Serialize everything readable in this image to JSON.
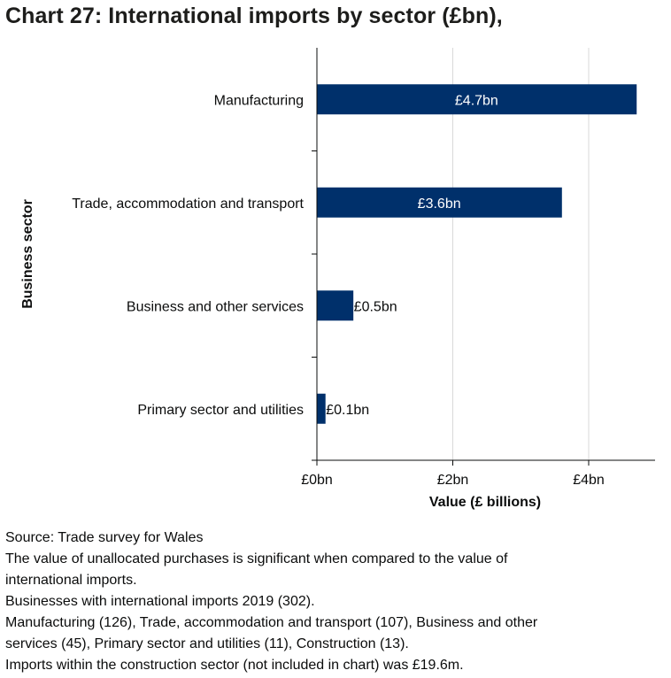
{
  "title": "Chart 27: International imports by sector (£bn),",
  "chart_data": {
    "type": "bar",
    "orientation": "horizontal",
    "title": "Chart 27: International imports by sector (£bn),",
    "xlabel": "Value (£ billions)",
    "ylabel": "Business sector",
    "categories": [
      "Manufacturing",
      "Trade, accommodation and transport",
      "Business and other services",
      "Primary sector and utilities"
    ],
    "values": [
      4.7,
      3.6,
      0.53,
      0.12
    ],
    "data_labels": [
      "£4.7bn",
      "£3.6bn",
      "£0.5bn",
      "£0.1bn"
    ],
    "xlim": [
      0,
      5
    ],
    "xticks": [
      0,
      2,
      4
    ],
    "xtick_labels": [
      "£0bn",
      "£2bn",
      "£4bn"
    ],
    "grid": "vertical",
    "legend": "none",
    "bar_color": "#00306b"
  },
  "notes": [
    "Source: Trade survey for Wales",
    "The value of unallocated purchases is significant when compared to the value of",
    "international imports.",
    "Businesses with international imports 2019 (302).",
    "Manufacturing (126), Trade, accommodation and transport (107), Business and other",
    "services (45), Primary sector and utilities (11), Construction (13).",
    "Imports within the construction sector (not included in chart) was £19.6m."
  ]
}
